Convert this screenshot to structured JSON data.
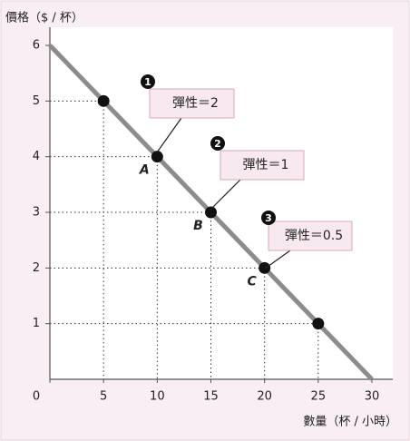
{
  "chart_data": {
    "type": "line",
    "y_label": "價格（$ / 杯）",
    "x_label": "數量（杯 / 小時）",
    "xlim": [
      0,
      30
    ],
    "ylim": [
      0,
      6
    ],
    "xticks": [
      0,
      5,
      10,
      15,
      20,
      25,
      30
    ],
    "yticks": [
      1,
      2,
      3,
      4,
      5,
      6
    ],
    "series": [
      {
        "color": "#8c8c8c",
        "x": [
          0,
          30
        ],
        "values": [
          6,
          0
        ]
      }
    ],
    "points": {
      "color": "#111111",
      "x": [
        5,
        10,
        15,
        20,
        25
      ],
      "values": [
        5,
        4,
        3,
        2,
        1
      ],
      "labels": [
        null,
        "A",
        "B",
        "C",
        null
      ]
    },
    "annotations": [
      {
        "number": "1",
        "text": "彈性＝2"
      },
      {
        "number": "2",
        "text": "彈性＝1"
      },
      {
        "number": "3",
        "text": "彈性＝0.5"
      }
    ]
  }
}
